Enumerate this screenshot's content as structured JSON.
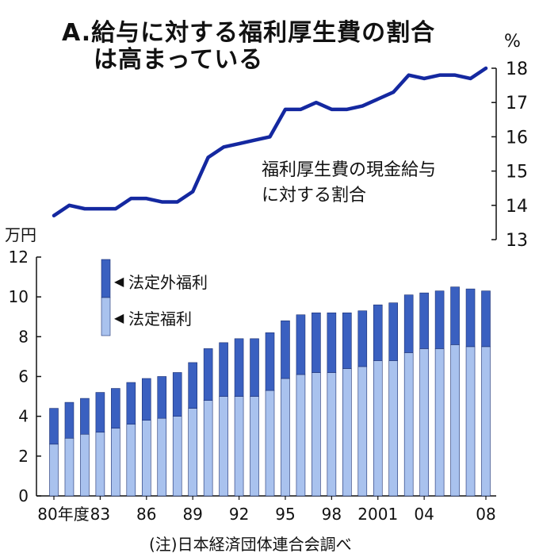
{
  "title_line1": "A.給与に対する福利厚生費の割合",
  "title_line2": "は高まっている",
  "source": "(注)日本経済団体連合会調べ",
  "chart_data": [
    {
      "type": "line",
      "series": [
        {
          "name": "福利厚生費の現金給与に対する割合",
          "values": [
            13.7,
            14.0,
            13.9,
            13.9,
            13.9,
            14.2,
            14.2,
            14.1,
            14.1,
            14.4,
            15.4,
            15.7,
            15.8,
            15.9,
            16.0,
            16.8,
            16.8,
            17.0,
            16.8,
            16.8,
            16.9,
            17.1,
            17.3,
            17.8,
            17.7,
            17.8,
            17.8,
            17.7,
            18.0
          ]
        }
      ],
      "label_line1": "福利厚生費の",
      "label_line2": "現金給与",
      "label_line3": "に対する割合",
      "yunit": "%",
      "ylim": [
        13,
        18
      ],
      "yticks": [
        "13",
        "14",
        "15",
        "16",
        "17",
        "18"
      ],
      "color": "#1428a0"
    },
    {
      "type": "bar",
      "stacked": true,
      "categories": [
        "1980",
        "1981",
        "1982",
        "1983",
        "1984",
        "1985",
        "1986",
        "1987",
        "1988",
        "1989",
        "1990",
        "1991",
        "1992",
        "1993",
        "1994",
        "1995",
        "1996",
        "1997",
        "1998",
        "1999",
        "2000",
        "2001",
        "2002",
        "2003",
        "2004",
        "2005",
        "2006",
        "2007",
        "2008"
      ],
      "series": [
        {
          "name": "法定福利",
          "values": [
            2.6,
            2.9,
            3.1,
            3.2,
            3.4,
            3.6,
            3.8,
            3.9,
            4.0,
            4.4,
            4.8,
            5.0,
            5.0,
            5.0,
            5.3,
            5.9,
            6.1,
            6.2,
            6.2,
            6.4,
            6.5,
            6.8,
            6.8,
            7.2,
            7.4,
            7.4,
            7.6,
            7.5,
            7.5
          ],
          "color": "#a9c2ee"
        },
        {
          "name": "法定外福利",
          "values": [
            1.8,
            1.8,
            1.8,
            2.0,
            2.0,
            2.1,
            2.1,
            2.1,
            2.2,
            2.3,
            2.6,
            2.7,
            2.9,
            2.9,
            2.9,
            2.9,
            3.0,
            3.0,
            3.0,
            2.8,
            2.8,
            2.8,
            2.9,
            2.9,
            2.8,
            2.9,
            2.9,
            2.9,
            2.8
          ],
          "color": "#3a60c0"
        }
      ],
      "yunit": "万円",
      "ylim": [
        0,
        12
      ],
      "yticks": [
        "0",
        "2",
        "4",
        "6",
        "8",
        "10",
        "12"
      ],
      "xticks": [
        "80年度",
        "83",
        "86",
        "89",
        "92",
        "95",
        "98",
        "2001",
        "04",
        "08"
      ],
      "xtick_index": [
        0,
        3,
        6,
        9,
        12,
        15,
        18,
        21,
        24,
        28
      ],
      "legend_marker": "◀"
    }
  ]
}
